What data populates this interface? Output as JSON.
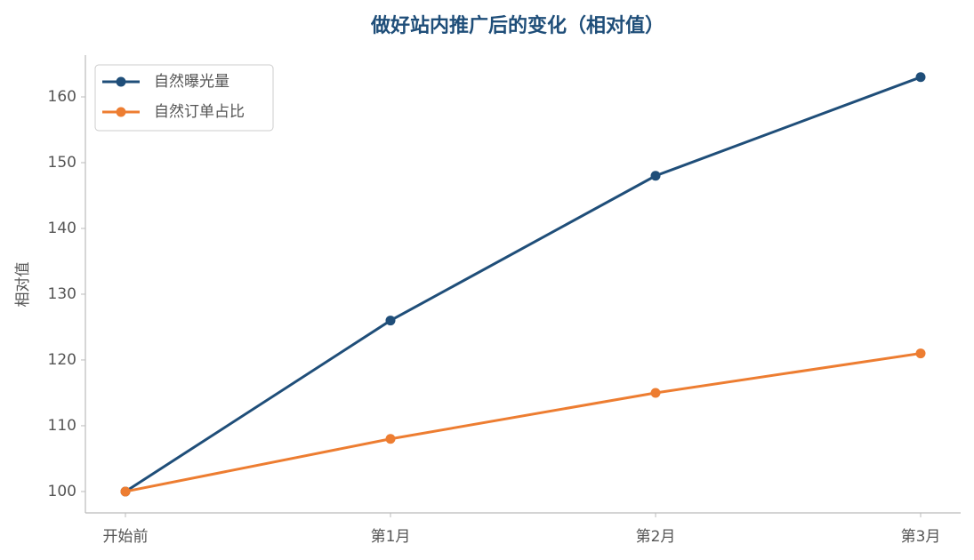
{
  "chart_data": {
    "type": "line",
    "title": "做好站内推广后的变化（相对值）",
    "ylabel": "相对值",
    "categories": [
      "开始前",
      "第1月",
      "第2月",
      "第3月"
    ],
    "series": [
      {
        "name": "自然曝光量",
        "color": "#1f4e79",
        "values": [
          100,
          126,
          148,
          163
        ]
      },
      {
        "name": "自然订单占比",
        "color": "#ed7d31",
        "values": [
          100,
          108,
          115,
          121
        ]
      }
    ],
    "ylim": [
      96.75,
      166.35
    ],
    "yticks": [
      100,
      110,
      120,
      130,
      140,
      150,
      160
    ],
    "grid": false,
    "legend": "upper left"
  }
}
